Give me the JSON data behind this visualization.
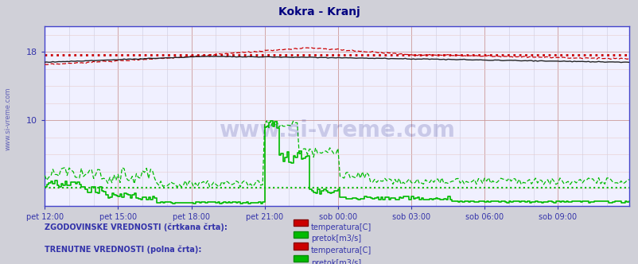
{
  "title": "Kokra - Kranj",
  "title_color": "#000080",
  "bg_color": "#d0d0d8",
  "plot_bg_color": "#f0f0ff",
  "watermark": "www.si-vreme.com",
  "xlabels": [
    "pet 12:00",
    "pet 15:00",
    "pet 18:00",
    "pet 21:00",
    "sob 00:00",
    "sob 03:00",
    "sob 06:00",
    "sob 09:00"
  ],
  "total_points": 288,
  "temp_color": "#cc0000",
  "flow_color": "#00bb00",
  "black_color": "#222222",
  "axis_color": "#4444cc",
  "tick_color": "#3333aa",
  "grid_major_color": "#cc9999",
  "grid_minor_color": "#e8cccc",
  "grid_v_color": "#ccccdd",
  "ymin": 0,
  "ymax": 21,
  "temp_hist_avg": 17.7,
  "flow_hist_avg": 2.1,
  "side_label": "www.si-vreme.com",
  "side_label_color": "#3333aa",
  "legend_text1": "ZGODOVINSKE VREDNOSTI (črtkana črta):",
  "legend_text2": "TRENUTNE VREDNOSTI (polna črta):",
  "legend_label_temp": "temperatura[C]",
  "legend_label_flow": "pretok[m3/s]"
}
